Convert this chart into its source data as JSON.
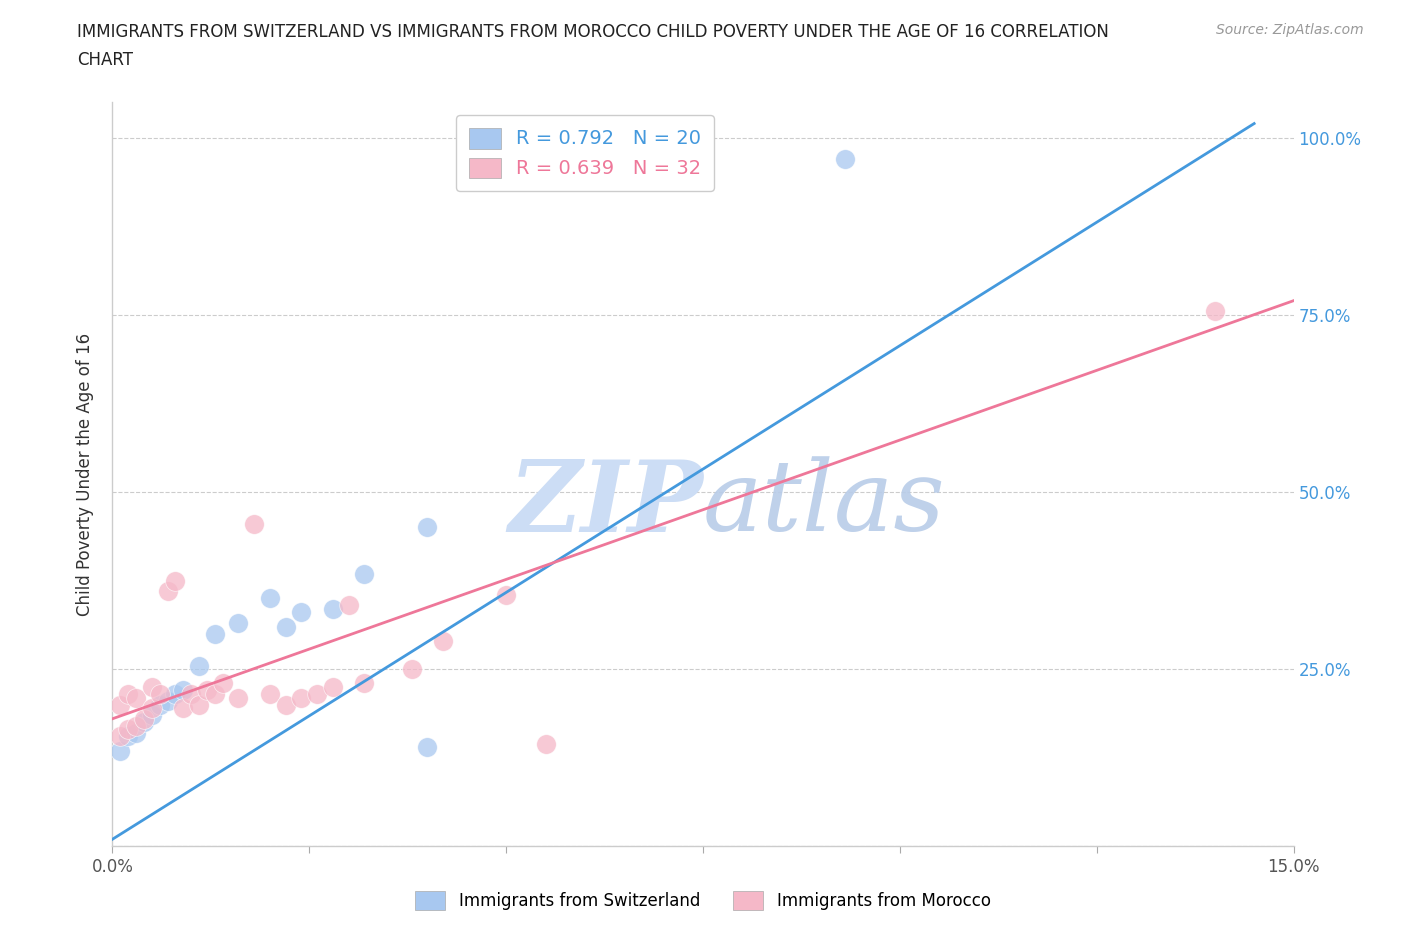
{
  "title_line1": "IMMIGRANTS FROM SWITZERLAND VS IMMIGRANTS FROM MOROCCO CHILD POVERTY UNDER THE AGE OF 16 CORRELATION",
  "title_line2": "CHART",
  "source": "Source: ZipAtlas.com",
  "ylabel": "Child Poverty Under the Age of 16",
  "x_min": 0.0,
  "x_max": 0.15,
  "y_min": 0.0,
  "y_max": 1.05,
  "x_ticks": [
    0.0,
    0.025,
    0.05,
    0.075,
    0.1,
    0.125,
    0.15
  ],
  "x_tick_labels": [
    "0.0%",
    "",
    "",
    "",
    "",
    "",
    "15.0%"
  ],
  "y_ticks": [
    0.0,
    0.25,
    0.5,
    0.75,
    1.0
  ],
  "y_tick_labels": [
    "",
    "25.0%",
    "50.0%",
    "75.0%",
    "100.0%"
  ],
  "switzerland_color": "#a8c8f0",
  "morocco_color": "#f5b8c8",
  "switzerland_line_color": "#4499dd",
  "morocco_line_color": "#ee7799",
  "legend_switzerland_R": "0.792",
  "legend_switzerland_N": "20",
  "legend_morocco_R": "0.639",
  "legend_morocco_N": "32",
  "watermark_zip_color": "#ccddf5",
  "watermark_atlas_color": "#b8cce8",
  "switz_trend_x": [
    0.0,
    0.145
  ],
  "switz_trend_y": [
    0.01,
    1.02
  ],
  "morocco_trend_x": [
    0.0,
    0.15
  ],
  "morocco_trend_y": [
    0.18,
    0.77
  ],
  "switzerland_scatter_x": [
    0.001,
    0.002,
    0.003,
    0.004,
    0.005,
    0.006,
    0.007,
    0.008,
    0.009,
    0.011,
    0.013,
    0.016,
    0.02,
    0.022,
    0.024,
    0.028,
    0.032,
    0.04,
    0.04,
    0.093
  ],
  "switzerland_scatter_y": [
    0.135,
    0.155,
    0.16,
    0.175,
    0.185,
    0.2,
    0.205,
    0.215,
    0.22,
    0.255,
    0.3,
    0.315,
    0.35,
    0.31,
    0.33,
    0.335,
    0.385,
    0.14,
    0.45,
    0.97
  ],
  "morocco_scatter_x": [
    0.001,
    0.001,
    0.002,
    0.002,
    0.003,
    0.003,
    0.004,
    0.005,
    0.005,
    0.006,
    0.007,
    0.008,
    0.009,
    0.01,
    0.011,
    0.012,
    0.013,
    0.014,
    0.016,
    0.018,
    0.02,
    0.022,
    0.024,
    0.026,
    0.028,
    0.03,
    0.032,
    0.038,
    0.042,
    0.05,
    0.055,
    0.14
  ],
  "morocco_scatter_y": [
    0.155,
    0.2,
    0.165,
    0.215,
    0.17,
    0.21,
    0.18,
    0.195,
    0.225,
    0.215,
    0.36,
    0.375,
    0.195,
    0.215,
    0.2,
    0.22,
    0.215,
    0.23,
    0.21,
    0.455,
    0.215,
    0.2,
    0.21,
    0.215,
    0.225,
    0.34,
    0.23,
    0.25,
    0.29,
    0.355,
    0.145,
    0.755
  ]
}
